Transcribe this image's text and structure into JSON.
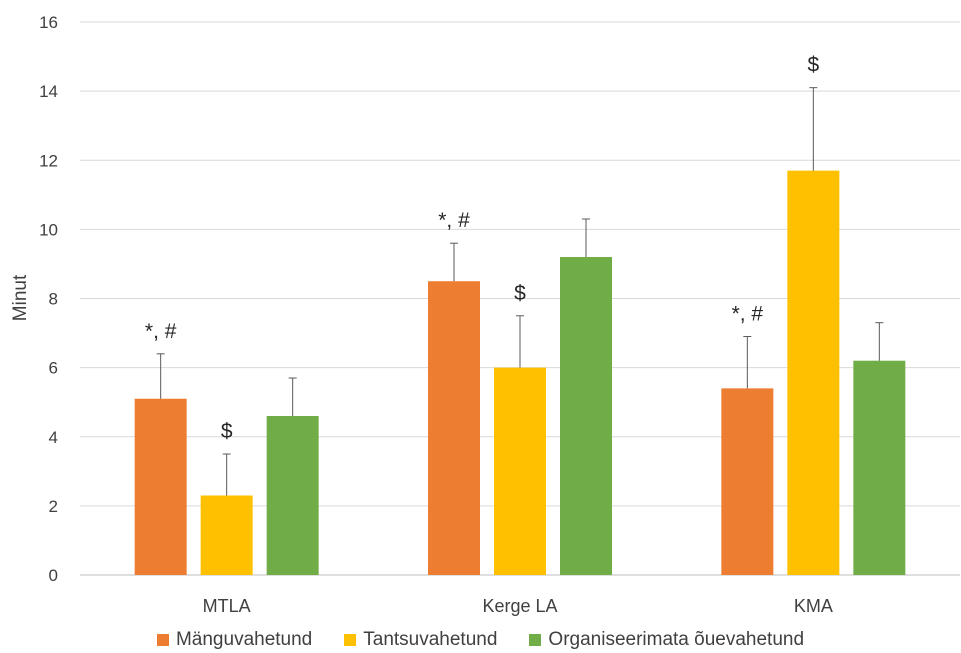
{
  "chart_data": {
    "type": "bar",
    "ylabel": "Minut",
    "xlabel": "",
    "ylim": [
      0,
      16
    ],
    "yticks": [
      0,
      2,
      4,
      6,
      8,
      10,
      12,
      14,
      16
    ],
    "grid": true,
    "legend_position": "bottom",
    "categories": [
      "MTLA",
      "Kerge LA",
      "KMA"
    ],
    "series": [
      {
        "name": "Mänguvahetund",
        "color": "#ED7D31",
        "values": [
          5.1,
          8.5,
          5.4
        ],
        "error_plus": [
          1.3,
          1.1,
          1.5
        ],
        "annotations": [
          "*, #",
          "*, #",
          "*, #"
        ]
      },
      {
        "name": "Tantsuvahetund",
        "color": "#FFC000",
        "values": [
          2.3,
          6.0,
          11.7
        ],
        "error_plus": [
          1.2,
          1.5,
          2.4
        ],
        "annotations": [
          "$",
          "$",
          "$"
        ]
      },
      {
        "name": "Organiseerimata õuevahetund",
        "color": "#70AD47",
        "values": [
          4.6,
          9.2,
          6.2
        ],
        "error_plus": [
          1.1,
          1.1,
          1.1
        ],
        "annotations": [
          "",
          "",
          ""
        ]
      }
    ]
  }
}
